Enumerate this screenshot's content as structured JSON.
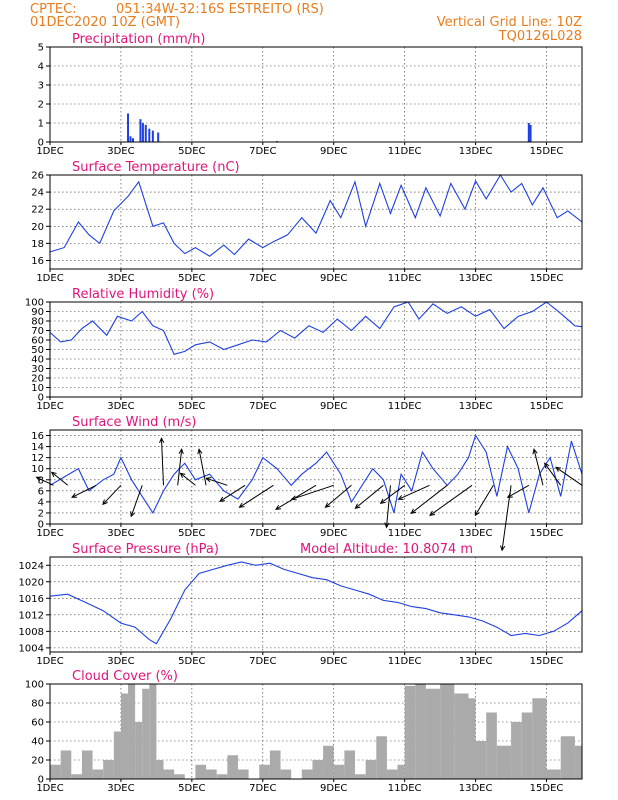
{
  "header": {
    "source": "CPTEC:",
    "location": "051:34W-32:16S  ESTREITO (RS)",
    "run": "01DEC2020 10Z (GMT)",
    "grid_note": "Vertical Grid Line: 10Z",
    "code": "TQ0126L028"
  },
  "x_axis": {
    "tick_labels": [
      "1DEC",
      "3DEC",
      "5DEC",
      "7DEC",
      "9DEC",
      "11DEC",
      "13DEC",
      "15DEC"
    ],
    "tick_days": [
      1,
      3,
      5,
      7,
      9,
      11,
      13,
      15
    ],
    "xlim": [
      1,
      16
    ]
  },
  "colors": {
    "line": "#1f3fe0",
    "cloud": "#aaaaaa",
    "wind": "#000000"
  },
  "chart_data": [
    {
      "type": "bar",
      "title": "Precipitation (mm/h)",
      "ylim": [
        0,
        5
      ],
      "yticks": [
        0,
        1,
        2,
        3,
        4,
        5
      ],
      "x": [
        3.2,
        3.27,
        3.34,
        3.55,
        3.62,
        3.7,
        3.8,
        3.9,
        4.05,
        14.5,
        14.55,
        7.4
      ],
      "values": [
        1.5,
        0.3,
        0.2,
        1.2,
        1.0,
        0.9,
        0.7,
        0.6,
        0.5,
        1.0,
        0.9,
        0.05
      ]
    },
    {
      "type": "line",
      "title": "Surface Temperature (nC)",
      "ylim": [
        15,
        26
      ],
      "yticks": [
        16,
        18,
        20,
        22,
        24,
        26
      ],
      "x": [
        1,
        1.4,
        1.8,
        2.1,
        2.4,
        2.8,
        3.2,
        3.5,
        3.9,
        4.2,
        4.5,
        4.8,
        5.1,
        5.5,
        5.9,
        6.2,
        6.6,
        7.0,
        7.3,
        7.7,
        8.1,
        8.5,
        8.9,
        9.2,
        9.6,
        9.9,
        10.3,
        10.6,
        10.9,
        11.3,
        11.6,
        12.0,
        12.3,
        12.7,
        13.0,
        13.3,
        13.7,
        14.0,
        14.3,
        14.6,
        14.9,
        15.3,
        15.6,
        16
      ],
      "y": [
        17,
        17.5,
        20.5,
        19,
        18,
        21.8,
        23.5,
        25.2,
        20,
        20.4,
        18,
        16.8,
        17.5,
        16.5,
        17.8,
        16.7,
        18.5,
        17.5,
        18.2,
        19,
        21,
        19.2,
        23,
        21,
        25.2,
        20,
        25,
        21.5,
        24.8,
        21,
        24.5,
        21.2,
        25,
        22,
        25.3,
        23.2,
        26,
        24,
        25,
        22.5,
        24.5,
        21,
        21.8,
        20.5
      ]
    },
    {
      "type": "line",
      "title": "Relative Humidity (%)",
      "ylim": [
        0,
        100
      ],
      "yticks": [
        0,
        10,
        20,
        30,
        40,
        50,
        60,
        70,
        80,
        90,
        100
      ],
      "x": [
        1,
        1.3,
        1.6,
        1.9,
        2.2,
        2.6,
        2.9,
        3.3,
        3.6,
        3.9,
        4.2,
        4.5,
        4.8,
        5.1,
        5.5,
        5.9,
        6.3,
        6.7,
        7.1,
        7.5,
        7.9,
        8.3,
        8.7,
        9.1,
        9.5,
        9.9,
        10.3,
        10.7,
        11.1,
        11.4,
        11.8,
        12.2,
        12.6,
        13.0,
        13.4,
        13.8,
        14.2,
        14.6,
        15.0,
        15.4,
        15.8,
        16
      ],
      "y": [
        68,
        58,
        60,
        72,
        80,
        65,
        85,
        80,
        90,
        75,
        70,
        45,
        48,
        55,
        58,
        50,
        55,
        60,
        58,
        70,
        62,
        75,
        68,
        82,
        70,
        85,
        72,
        95,
        100,
        82,
        98,
        88,
        95,
        85,
        92,
        72,
        85,
        90,
        100,
        88,
        75,
        74
      ]
    },
    {
      "type": "line",
      "title": "Surface Wind (m/s)",
      "ylim": [
        0,
        17
      ],
      "yticks": [
        0,
        2,
        4,
        6,
        8,
        10,
        12,
        14,
        16
      ],
      "x": [
        1,
        1.4,
        1.8,
        2.1,
        2.5,
        2.8,
        3.0,
        3.3,
        3.6,
        3.9,
        4.2,
        4.5,
        4.8,
        5.1,
        5.5,
        5.9,
        6.3,
        6.7,
        7.0,
        7.4,
        7.8,
        8.1,
        8.5,
        8.8,
        9.2,
        9.5,
        9.8,
        10.1,
        10.4,
        10.7,
        10.9,
        11.2,
        11.5,
        11.8,
        12.2,
        12.5,
        12.8,
        13.0,
        13.3,
        13.6,
        13.9,
        14.2,
        14.5,
        14.8,
        15.1,
        15.4,
        15.7,
        16
      ],
      "y": [
        7,
        8.5,
        10,
        6,
        8,
        9,
        12,
        8,
        5,
        2,
        6,
        9,
        11,
        8,
        9,
        6,
        4.5,
        8,
        12,
        10,
        7,
        9,
        11,
        13,
        9,
        4,
        7,
        10,
        8,
        2,
        9,
        6,
        13,
        10,
        7,
        9,
        12,
        16,
        13,
        5,
        14,
        10,
        2,
        9,
        12,
        5,
        15,
        9
      ],
      "arrows": [
        {
          "x": 1.1,
          "dx": -1.7,
          "dy": 0.8
        },
        {
          "x": 1.5,
          "dx": -1.6,
          "dy": 1.3
        },
        {
          "x": 2.3,
          "dx": -2.4,
          "dy": -1.2
        },
        {
          "x": 3.0,
          "dx": -1.8,
          "dy": -1.9
        },
        {
          "x": 3.6,
          "dx": -1.1,
          "dy": -3.1
        },
        {
          "x": 4.2,
          "dx": -0.2,
          "dy": 4.7
        },
        {
          "x": 4.6,
          "dx": 0.4,
          "dy": 3.6
        },
        {
          "x": 5.1,
          "dx": -1.5,
          "dy": 1.2
        },
        {
          "x": 5.4,
          "dx": -0.7,
          "dy": 3.6
        },
        {
          "x": 6.0,
          "dx": -2.1,
          "dy": 0.7
        },
        {
          "x": 6.5,
          "dx": -2.5,
          "dy": -1.6
        },
        {
          "x": 7.3,
          "dx": -3.4,
          "dy": -2.2
        },
        {
          "x": 8.5,
          "dx": -4.0,
          "dy": -2.4
        },
        {
          "x": 9.0,
          "dx": -4.2,
          "dy": -1.4
        },
        {
          "x": 9.5,
          "dx": -2.6,
          "dy": -2.2
        },
        {
          "x": 10.4,
          "dx": -2.8,
          "dy": -2.3
        },
        {
          "x": 10.6,
          "dx": -0.4,
          "dy": -4.2
        },
        {
          "x": 11.0,
          "dx": -2.4,
          "dy": -1.8
        },
        {
          "x": 11.7,
          "dx": -3.1,
          "dy": -1.4
        },
        {
          "x": 12.2,
          "dx": -3.6,
          "dy": -2.8
        },
        {
          "x": 12.9,
          "dx": -4.2,
          "dy": -3.0
        },
        {
          "x": 13.5,
          "dx": -1.8,
          "dy": -3.0
        },
        {
          "x": 14.0,
          "dx": -0.9,
          "dy": -6.5
        },
        {
          "x": 14.5,
          "dx": -2.1,
          "dy": -1.2
        },
        {
          "x": 14.9,
          "dx": -0.9,
          "dy": 3.6
        },
        {
          "x": 15.4,
          "dx": -1.6,
          "dy": 2.2
        },
        {
          "x": 16.0,
          "dx": -2.6,
          "dy": 1.8
        }
      ]
    },
    {
      "type": "line",
      "title": "Surface Pressure (hPa)",
      "annotation": "Model Altitude: 10.8074 m",
      "ylim": [
        1003,
        1026
      ],
      "yticks": [
        1004,
        1008,
        1012,
        1016,
        1020,
        1024
      ],
      "x": [
        1,
        1.5,
        2.0,
        2.5,
        3.0,
        3.4,
        3.8,
        4.0,
        4.4,
        4.8,
        5.2,
        5.6,
        6.0,
        6.4,
        6.8,
        7.2,
        7.6,
        8.0,
        8.4,
        8.8,
        9.2,
        9.6,
        10.0,
        10.4,
        10.8,
        11.2,
        11.6,
        12.0,
        12.4,
        12.8,
        13.2,
        13.6,
        14.0,
        14.4,
        14.8,
        15.2,
        15.6,
        16
      ],
      "y": [
        1016.5,
        1017,
        1015,
        1013,
        1010,
        1009,
        1006,
        1005,
        1011,
        1018,
        1022,
        1023,
        1024,
        1024.8,
        1024,
        1024.5,
        1023,
        1022,
        1021,
        1020.5,
        1019,
        1018,
        1017,
        1015.5,
        1015,
        1014,
        1013.5,
        1012.5,
        1012,
        1011.5,
        1010.5,
        1009,
        1007,
        1007.5,
        1007,
        1008,
        1010,
        1013
      ]
    },
    {
      "type": "area",
      "title": "Cloud Cover (%)",
      "ylim": [
        0,
        100
      ],
      "yticks": [
        0,
        20,
        40,
        60,
        80,
        100
      ],
      "x": [
        1,
        1.3,
        1.6,
        1.9,
        2.2,
        2.5,
        2.8,
        3.0,
        3.2,
        3.4,
        3.6,
        3.8,
        4.0,
        4.2,
        4.5,
        4.8,
        5.1,
        5.4,
        5.7,
        6.0,
        6.3,
        6.6,
        6.9,
        7.2,
        7.5,
        7.8,
        8.1,
        8.4,
        8.7,
        9.0,
        9.3,
        9.6,
        9.9,
        10.2,
        10.5,
        10.8,
        11.0,
        11.3,
        11.6,
        12.0,
        12.4,
        12.8,
        13.0,
        13.3,
        13.6,
        14.0,
        14.3,
        14.6,
        15.0,
        15.4,
        15.8,
        16
      ],
      "y": [
        15,
        30,
        5,
        30,
        10,
        20,
        50,
        90,
        100,
        60,
        95,
        100,
        20,
        10,
        5,
        0,
        15,
        10,
        5,
        25,
        10,
        0,
        15,
        30,
        10,
        0,
        10,
        20,
        35,
        15,
        30,
        5,
        20,
        45,
        10,
        15,
        98,
        100,
        95,
        100,
        90,
        85,
        40,
        70,
        35,
        60,
        70,
        85,
        10,
        45,
        35,
        0
      ]
    }
  ]
}
